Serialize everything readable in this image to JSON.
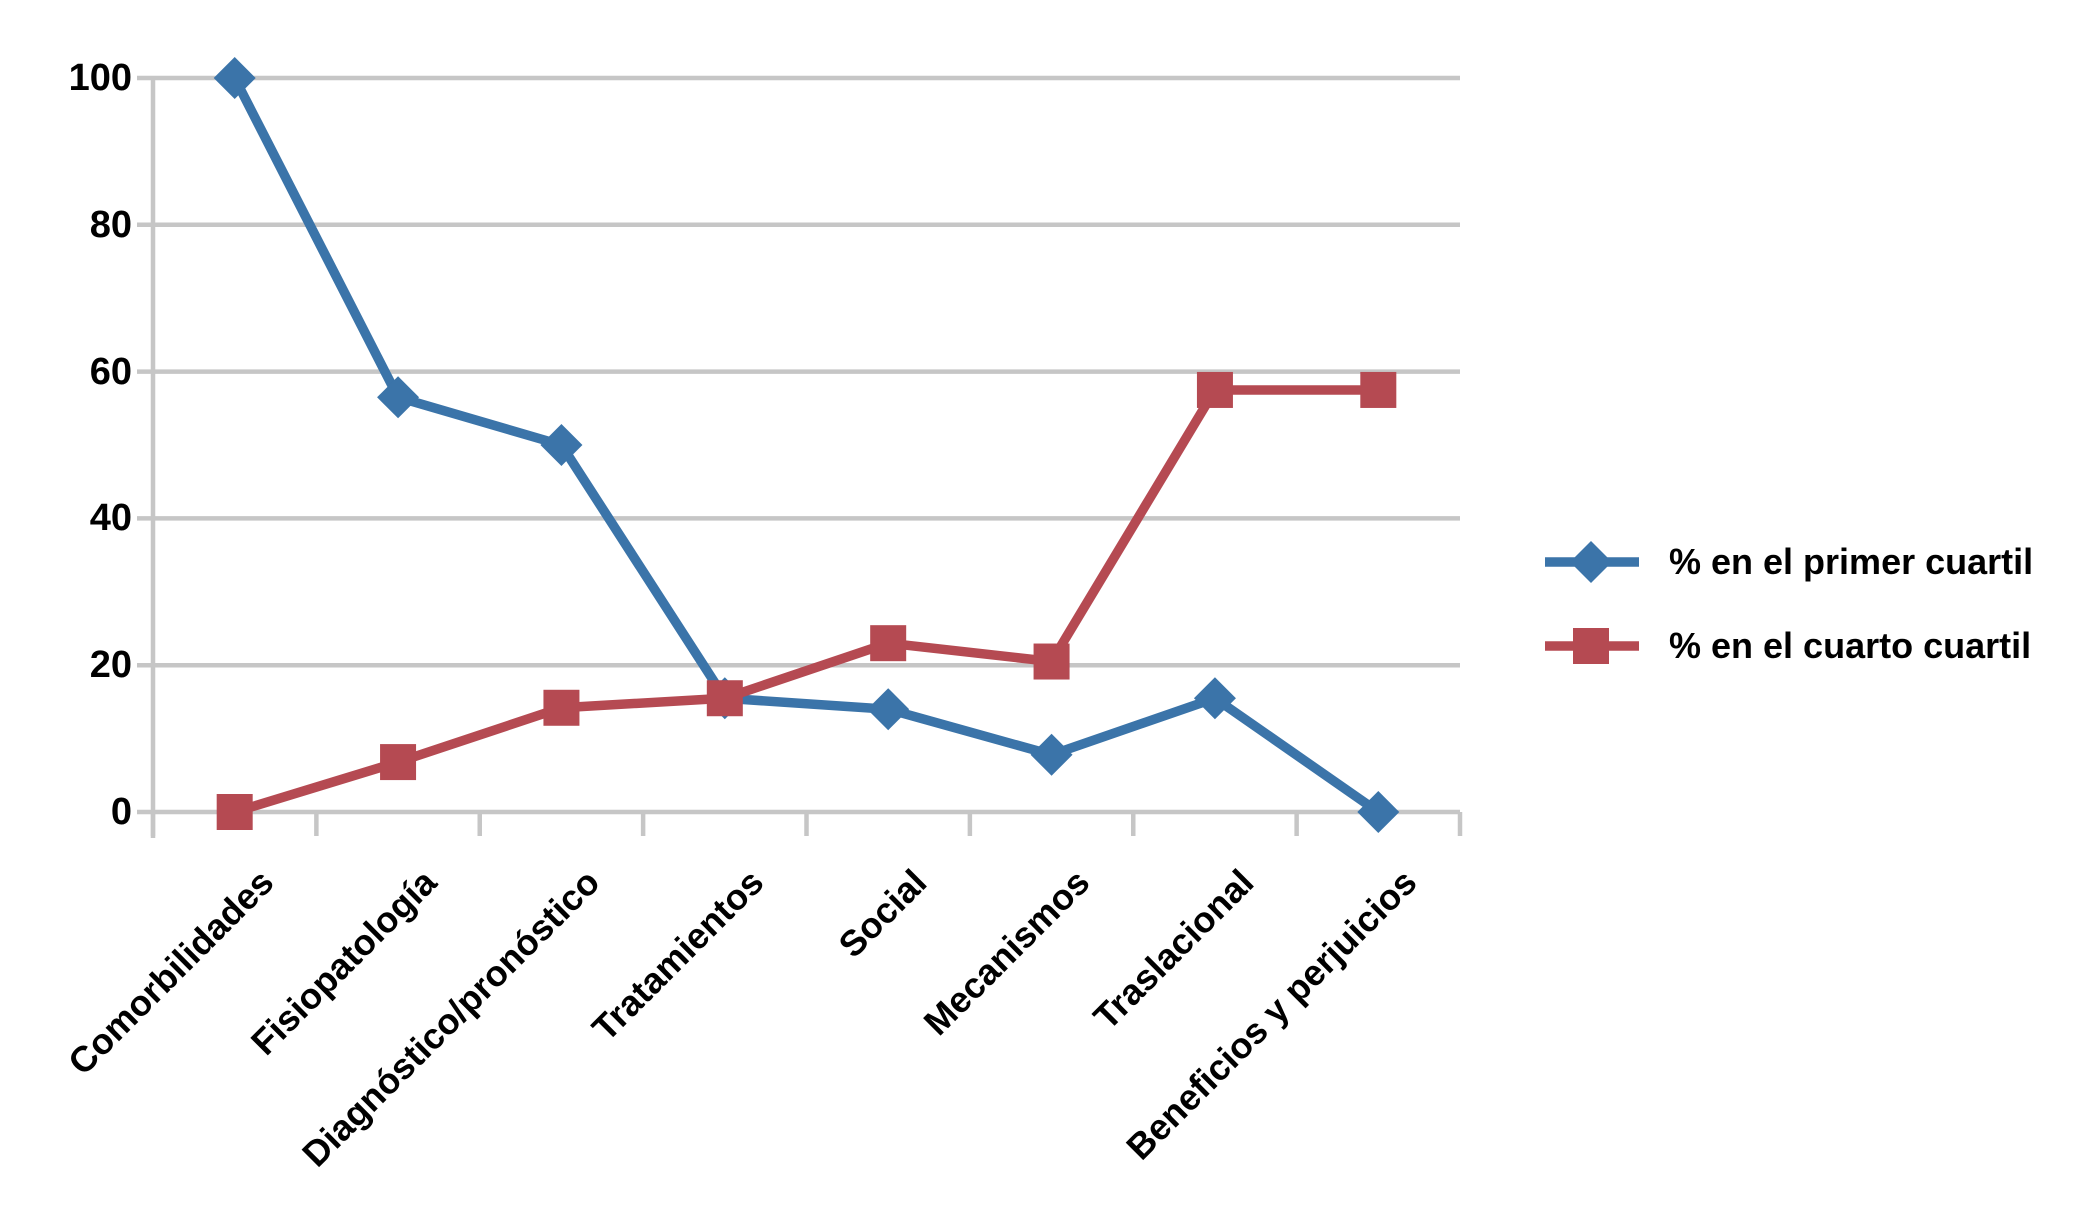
{
  "chart_data": {
    "type": "line",
    "title": "",
    "xlabel": "",
    "ylabel": "",
    "categories": [
      "Comorbilidades",
      "Fisiopatología",
      "Diagnóstico/pronóstico",
      "Tratamientos",
      "Social",
      "Mecanismos",
      "Traslacional",
      "Beneficios y perjuicios"
    ],
    "series": [
      {
        "name": "% en el primer cuartil",
        "marker": "diamond",
        "color": "#3B74A9",
        "values": [
          100,
          56.5,
          50,
          15.5,
          14,
          7.8,
          15.5,
          0
        ]
      },
      {
        "name": "% en el cuarto cuartil",
        "marker": "square",
        "color": "#B54A52",
        "values": [
          0,
          6.8,
          14.2,
          15.5,
          23,
          20.5,
          57.5,
          57.5
        ]
      }
    ],
    "ylim": [
      0,
      100
    ],
    "yticks": [
      0,
      20,
      40,
      60,
      80,
      100
    ],
    "y_tick_labels": [
      "0",
      "20",
      "40",
      "60",
      "80",
      "100"
    ],
    "grid": "horizontal",
    "grid_color": "#C6C6C6",
    "text_color": "#000000",
    "background_color": "#FFFFFF",
    "legend_position": "right-middle"
  }
}
